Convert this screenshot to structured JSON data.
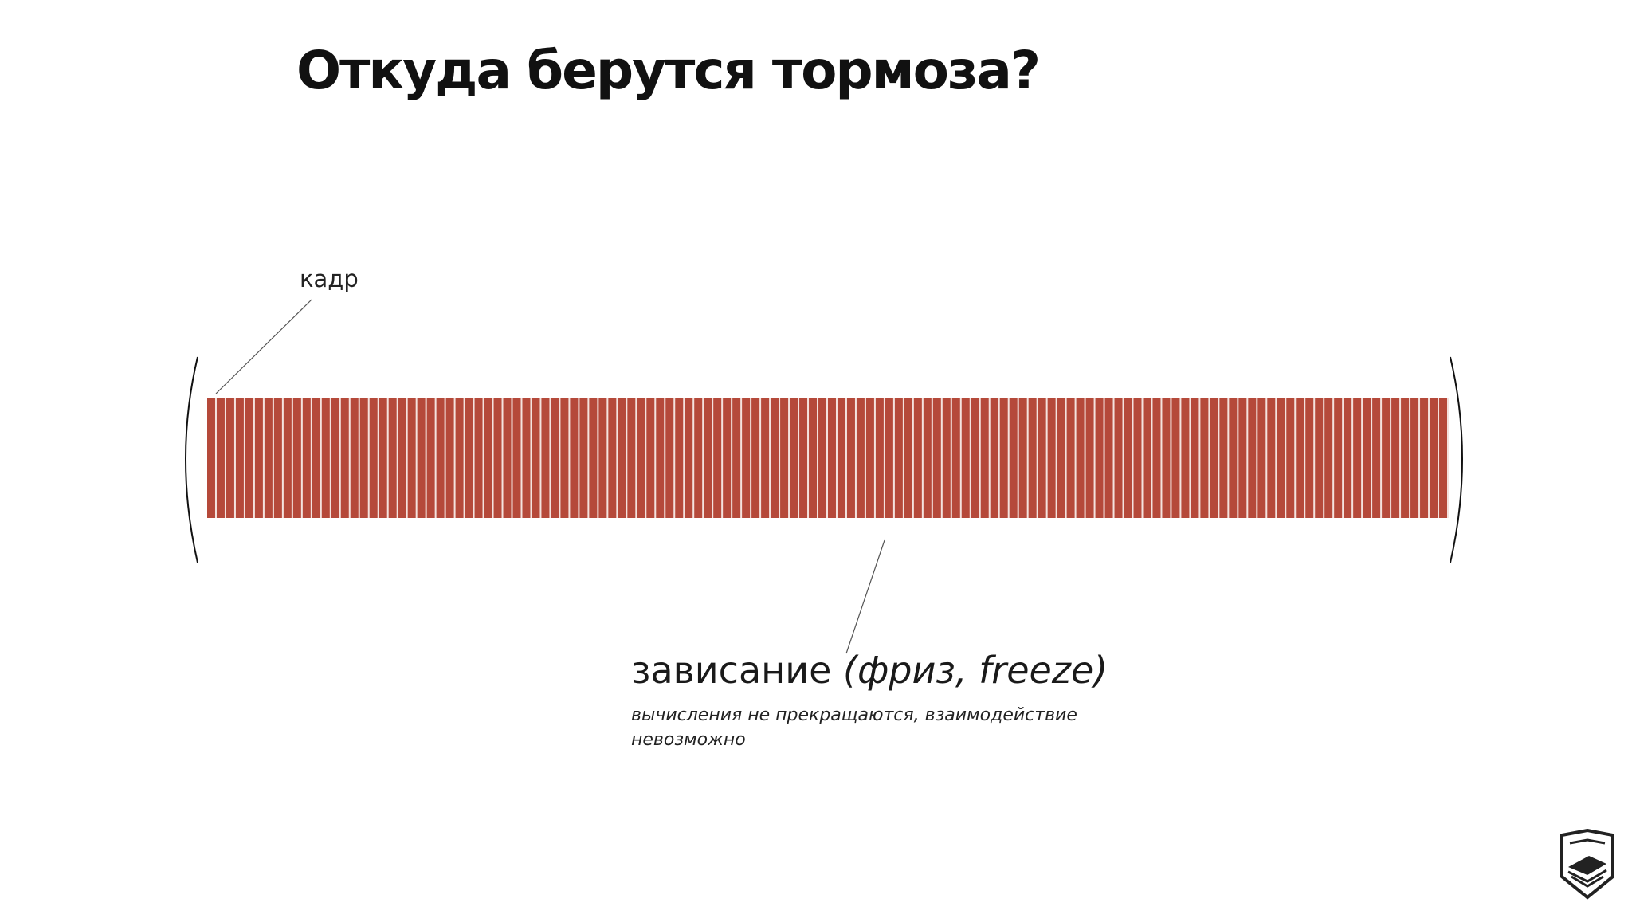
{
  "slide": {
    "title": "Откуда берутся тормоза?",
    "frame_label": "кадр",
    "freeze_label": "зависание",
    "freeze_label_alt": "(фриз, freeze)",
    "freeze_description": "вычисления не прекращаются, взаимодействие невозможно"
  },
  "timeline": {
    "frame_count": 130,
    "frame_color": "#b5493a",
    "frame_gap_color": "#f4e2de"
  },
  "logo": {
    "icon": "hexagon-book-logo-icon"
  }
}
